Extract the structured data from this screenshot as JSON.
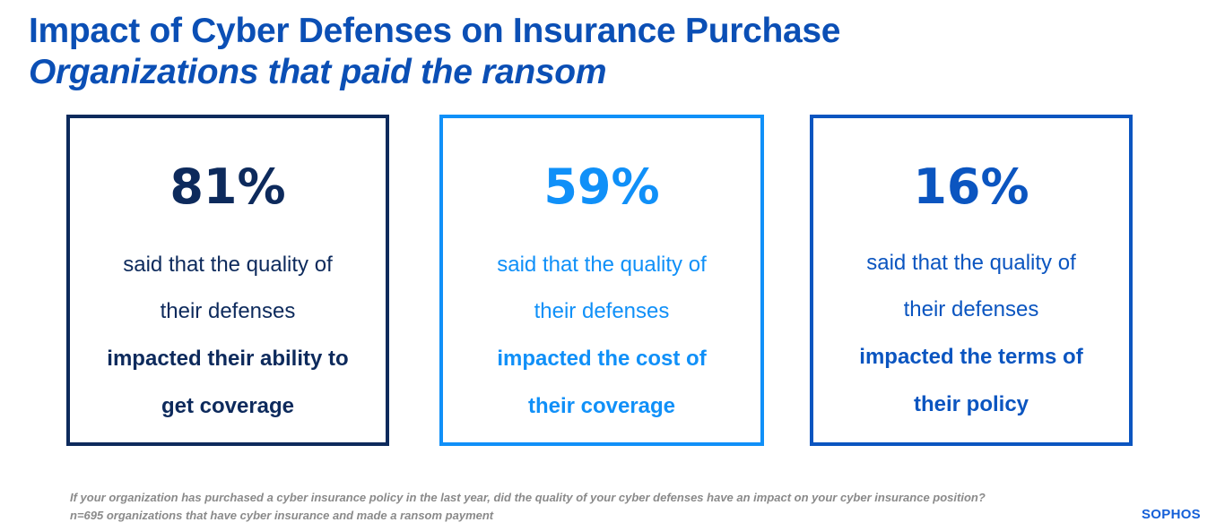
{
  "header": {
    "title": "Impact of Cyber Defenses on Insurance Purchase",
    "subtitle": "Organizations that paid the ransom"
  },
  "cards": [
    {
      "value": "81%",
      "line1": "said that the quality of",
      "line2": "their defenses",
      "line3": "impacted their ability to",
      "line4": "get coverage",
      "color": "#0d2a5c"
    },
    {
      "value": "59%",
      "line1": "said that the quality of",
      "line2": "their defenses",
      "line3": "impacted the cost of",
      "line4": "their coverage",
      "color": "#1090f8"
    },
    {
      "value": "16%",
      "line1": "said that the quality of",
      "line2": "their defenses",
      "line3": "impacted the terms of",
      "line4": "their policy",
      "color": "#0b55c0"
    }
  ],
  "footer": {
    "note": "If your organization has purchased a cyber insurance policy in the last year, did the quality of your cyber defenses have an impact on your cyber insurance position? n=695 organizations that have cyber insurance and made a ransom payment",
    "logo": "SOPHOS"
  }
}
